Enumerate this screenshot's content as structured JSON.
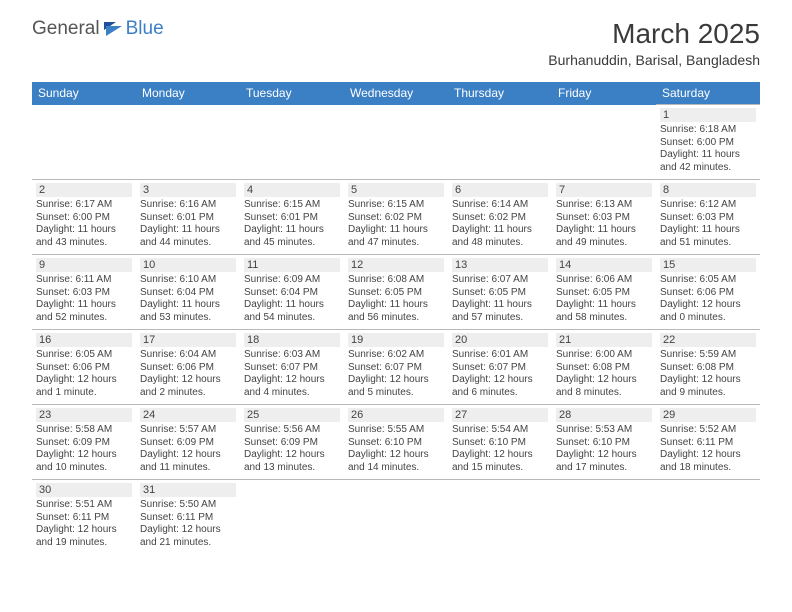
{
  "logo": {
    "part1": "General",
    "part2": "Blue"
  },
  "title": "March 2025",
  "subtitle": "Burhanuddin, Barisal, Bangladesh",
  "colors": {
    "header_bg": "#3b7fc4",
    "header_fg": "#ffffff",
    "daynum_bg": "#eeeeee",
    "border": "#b8b8b8",
    "text": "#444444",
    "logo_gray": "#555555",
    "logo_blue": "#3b7fc4"
  },
  "daynames": [
    "Sunday",
    "Monday",
    "Tuesday",
    "Wednesday",
    "Thursday",
    "Friday",
    "Saturday"
  ],
  "weeks": [
    [
      null,
      null,
      null,
      null,
      null,
      null,
      {
        "n": "1",
        "sr": "Sunrise: 6:18 AM",
        "ss": "Sunset: 6:00 PM",
        "d1": "Daylight: 11 hours",
        "d2": "and 42 minutes."
      }
    ],
    [
      {
        "n": "2",
        "sr": "Sunrise: 6:17 AM",
        "ss": "Sunset: 6:00 PM",
        "d1": "Daylight: 11 hours",
        "d2": "and 43 minutes."
      },
      {
        "n": "3",
        "sr": "Sunrise: 6:16 AM",
        "ss": "Sunset: 6:01 PM",
        "d1": "Daylight: 11 hours",
        "d2": "and 44 minutes."
      },
      {
        "n": "4",
        "sr": "Sunrise: 6:15 AM",
        "ss": "Sunset: 6:01 PM",
        "d1": "Daylight: 11 hours",
        "d2": "and 45 minutes."
      },
      {
        "n": "5",
        "sr": "Sunrise: 6:15 AM",
        "ss": "Sunset: 6:02 PM",
        "d1": "Daylight: 11 hours",
        "d2": "and 47 minutes."
      },
      {
        "n": "6",
        "sr": "Sunrise: 6:14 AM",
        "ss": "Sunset: 6:02 PM",
        "d1": "Daylight: 11 hours",
        "d2": "and 48 minutes."
      },
      {
        "n": "7",
        "sr": "Sunrise: 6:13 AM",
        "ss": "Sunset: 6:03 PM",
        "d1": "Daylight: 11 hours",
        "d2": "and 49 minutes."
      },
      {
        "n": "8",
        "sr": "Sunrise: 6:12 AM",
        "ss": "Sunset: 6:03 PM",
        "d1": "Daylight: 11 hours",
        "d2": "and 51 minutes."
      }
    ],
    [
      {
        "n": "9",
        "sr": "Sunrise: 6:11 AM",
        "ss": "Sunset: 6:03 PM",
        "d1": "Daylight: 11 hours",
        "d2": "and 52 minutes."
      },
      {
        "n": "10",
        "sr": "Sunrise: 6:10 AM",
        "ss": "Sunset: 6:04 PM",
        "d1": "Daylight: 11 hours",
        "d2": "and 53 minutes."
      },
      {
        "n": "11",
        "sr": "Sunrise: 6:09 AM",
        "ss": "Sunset: 6:04 PM",
        "d1": "Daylight: 11 hours",
        "d2": "and 54 minutes."
      },
      {
        "n": "12",
        "sr": "Sunrise: 6:08 AM",
        "ss": "Sunset: 6:05 PM",
        "d1": "Daylight: 11 hours",
        "d2": "and 56 minutes."
      },
      {
        "n": "13",
        "sr": "Sunrise: 6:07 AM",
        "ss": "Sunset: 6:05 PM",
        "d1": "Daylight: 11 hours",
        "d2": "and 57 minutes."
      },
      {
        "n": "14",
        "sr": "Sunrise: 6:06 AM",
        "ss": "Sunset: 6:05 PM",
        "d1": "Daylight: 11 hours",
        "d2": "and 58 minutes."
      },
      {
        "n": "15",
        "sr": "Sunrise: 6:05 AM",
        "ss": "Sunset: 6:06 PM",
        "d1": "Daylight: 12 hours",
        "d2": "and 0 minutes."
      }
    ],
    [
      {
        "n": "16",
        "sr": "Sunrise: 6:05 AM",
        "ss": "Sunset: 6:06 PM",
        "d1": "Daylight: 12 hours",
        "d2": "and 1 minute."
      },
      {
        "n": "17",
        "sr": "Sunrise: 6:04 AM",
        "ss": "Sunset: 6:06 PM",
        "d1": "Daylight: 12 hours",
        "d2": "and 2 minutes."
      },
      {
        "n": "18",
        "sr": "Sunrise: 6:03 AM",
        "ss": "Sunset: 6:07 PM",
        "d1": "Daylight: 12 hours",
        "d2": "and 4 minutes."
      },
      {
        "n": "19",
        "sr": "Sunrise: 6:02 AM",
        "ss": "Sunset: 6:07 PM",
        "d1": "Daylight: 12 hours",
        "d2": "and 5 minutes."
      },
      {
        "n": "20",
        "sr": "Sunrise: 6:01 AM",
        "ss": "Sunset: 6:07 PM",
        "d1": "Daylight: 12 hours",
        "d2": "and 6 minutes."
      },
      {
        "n": "21",
        "sr": "Sunrise: 6:00 AM",
        "ss": "Sunset: 6:08 PM",
        "d1": "Daylight: 12 hours",
        "d2": "and 8 minutes."
      },
      {
        "n": "22",
        "sr": "Sunrise: 5:59 AM",
        "ss": "Sunset: 6:08 PM",
        "d1": "Daylight: 12 hours",
        "d2": "and 9 minutes."
      }
    ],
    [
      {
        "n": "23",
        "sr": "Sunrise: 5:58 AM",
        "ss": "Sunset: 6:09 PM",
        "d1": "Daylight: 12 hours",
        "d2": "and 10 minutes."
      },
      {
        "n": "24",
        "sr": "Sunrise: 5:57 AM",
        "ss": "Sunset: 6:09 PM",
        "d1": "Daylight: 12 hours",
        "d2": "and 11 minutes."
      },
      {
        "n": "25",
        "sr": "Sunrise: 5:56 AM",
        "ss": "Sunset: 6:09 PM",
        "d1": "Daylight: 12 hours",
        "d2": "and 13 minutes."
      },
      {
        "n": "26",
        "sr": "Sunrise: 5:55 AM",
        "ss": "Sunset: 6:10 PM",
        "d1": "Daylight: 12 hours",
        "d2": "and 14 minutes."
      },
      {
        "n": "27",
        "sr": "Sunrise: 5:54 AM",
        "ss": "Sunset: 6:10 PM",
        "d1": "Daylight: 12 hours",
        "d2": "and 15 minutes."
      },
      {
        "n": "28",
        "sr": "Sunrise: 5:53 AM",
        "ss": "Sunset: 6:10 PM",
        "d1": "Daylight: 12 hours",
        "d2": "and 17 minutes."
      },
      {
        "n": "29",
        "sr": "Sunrise: 5:52 AM",
        "ss": "Sunset: 6:11 PM",
        "d1": "Daylight: 12 hours",
        "d2": "and 18 minutes."
      }
    ],
    [
      {
        "n": "30",
        "sr": "Sunrise: 5:51 AM",
        "ss": "Sunset: 6:11 PM",
        "d1": "Daylight: 12 hours",
        "d2": "and 19 minutes."
      },
      {
        "n": "31",
        "sr": "Sunrise: 5:50 AM",
        "ss": "Sunset: 6:11 PM",
        "d1": "Daylight: 12 hours",
        "d2": "and 21 minutes."
      },
      null,
      null,
      null,
      null,
      null
    ]
  ]
}
